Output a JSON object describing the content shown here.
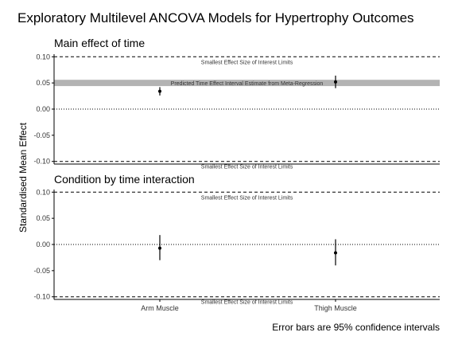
{
  "title": "Exploratory Multilevel ANCOVA Models for Hypertrophy Outcomes",
  "ylabel": "Standardised Mean Effect",
  "caption": "Error bars are 95% confidence intervals",
  "colors": {
    "band": "#b3b3b3",
    "ink": "#000000",
    "text": "#333333"
  },
  "chart_data": [
    {
      "type": "scatter",
      "subtitle": "Main effect of time",
      "categories": [
        "Arm Muscle",
        "Thigh Muscle"
      ],
      "ylim": [
        -0.105,
        0.105
      ],
      "yticks": [
        -0.1,
        -0.05,
        0.0,
        0.05,
        0.1
      ],
      "show_x_tick_labels": false,
      "points": [
        {
          "category": "Arm Muscle",
          "estimate": 0.034,
          "lower": 0.026,
          "upper": 0.042
        },
        {
          "category": "Thigh Muscle",
          "estimate": 0.052,
          "lower": 0.04,
          "upper": 0.064
        }
      ],
      "band": {
        "lower": 0.044,
        "upper": 0.056,
        "label": "Predicted Time Effect Interval Estimate from Meta-Regression"
      },
      "reference_lines": [
        {
          "y": 0.1,
          "style": "dashed",
          "label": "Smallest Effect Size of Interest Limits"
        },
        {
          "y": 0.0,
          "style": "dotted",
          "label": ""
        },
        {
          "y": -0.1,
          "style": "dashed",
          "label": "Smallest Effect Size of Interest Limits"
        }
      ]
    },
    {
      "type": "scatter",
      "subtitle": "Condition by time interaction",
      "categories": [
        "Arm Muscle",
        "Thigh Muscle"
      ],
      "ylim": [
        -0.105,
        0.105
      ],
      "yticks": [
        -0.1,
        -0.05,
        0.0,
        0.05,
        0.1
      ],
      "show_x_tick_labels": true,
      "points": [
        {
          "category": "Arm Muscle",
          "estimate": -0.007,
          "lower": -0.03,
          "upper": 0.018
        },
        {
          "category": "Thigh Muscle",
          "estimate": -0.016,
          "lower": -0.04,
          "upper": 0.01
        }
      ],
      "band": null,
      "reference_lines": [
        {
          "y": 0.1,
          "style": "dashed",
          "label": "Smallest Effect Size of Interest Limits"
        },
        {
          "y": 0.0,
          "style": "dotted",
          "label": ""
        },
        {
          "y": -0.1,
          "style": "dashed",
          "label": "Smallest Effect Size of Interest Limits"
        }
      ]
    }
  ]
}
